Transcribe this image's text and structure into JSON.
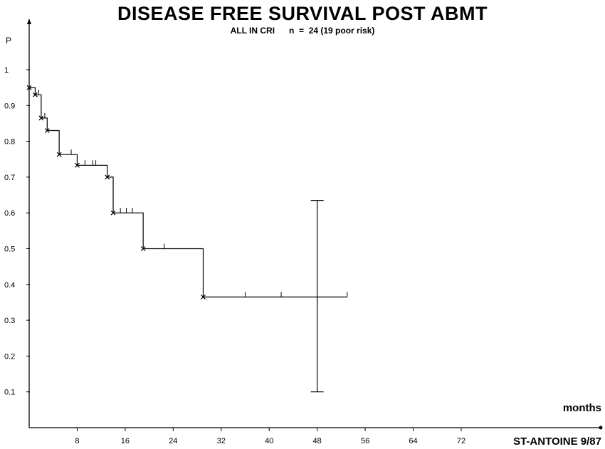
{
  "chart_data": {
    "type": "line",
    "title": "DISEASE FREE SURVIVAL POST ABMT",
    "subtitle": "ALL IN CRI      n  =  24 (19 poor risk)",
    "ylabel": "P",
    "xlabel": "months",
    "credit": "ST-ANTOINE 9/87",
    "xlim": [
      0,
      96
    ],
    "ylim": [
      0,
      1.05
    ],
    "x_ticks": [
      8,
      16,
      24,
      32,
      40,
      48,
      56,
      64,
      72
    ],
    "y_ticks": [
      0.1,
      0.2,
      0.3,
      0.4,
      0.5,
      0.6,
      0.7,
      0.8,
      0.9,
      1
    ],
    "y_tick_labels": [
      "0.1",
      "0.2",
      "0.3",
      "0.4",
      "0.5",
      "0.6",
      "0.7",
      "0.8",
      "0.9",
      "1"
    ],
    "grid": false,
    "series": [
      {
        "steps": [
          {
            "x": 0,
            "y": 0.95
          },
          {
            "x": 1,
            "y": 0.93
          },
          {
            "x": 2,
            "y": 0.865
          },
          {
            "x": 3,
            "y": 0.83
          },
          {
            "x": 5,
            "y": 0.763
          },
          {
            "x": 8,
            "y": 0.733
          },
          {
            "x": 13,
            "y": 0.7
          },
          {
            "x": 14,
            "y": 0.6
          },
          {
            "x": 19,
            "y": 0.5
          },
          {
            "x": 29,
            "y": 0.365
          }
        ],
        "end_x": 53,
        "events": [
          {
            "x": 0,
            "y": 0.95
          },
          {
            "x": 1,
            "y": 0.93
          },
          {
            "x": 2,
            "y": 0.865
          },
          {
            "x": 3,
            "y": 0.83
          },
          {
            "x": 5,
            "y": 0.763
          },
          {
            "x": 8,
            "y": 0.733
          },
          {
            "x": 13,
            "y": 0.7
          },
          {
            "x": 14,
            "y": 0.6
          },
          {
            "x": 19,
            "y": 0.5
          },
          {
            "x": 29,
            "y": 0.365
          }
        ],
        "censored": [
          {
            "x": 1.6,
            "y": 0.93
          },
          {
            "x": 2.6,
            "y": 0.865
          },
          {
            "x": 7,
            "y": 0.763
          },
          {
            "x": 9.3,
            "y": 0.733
          },
          {
            "x": 10.6,
            "y": 0.733
          },
          {
            "x": 11.1,
            "y": 0.733
          },
          {
            "x": 15.2,
            "y": 0.6
          },
          {
            "x": 16.2,
            "y": 0.6
          },
          {
            "x": 17.2,
            "y": 0.6
          },
          {
            "x": 22.5,
            "y": 0.5
          },
          {
            "x": 36,
            "y": 0.365
          },
          {
            "x": 42,
            "y": 0.365
          },
          {
            "x": 53,
            "y": 0.365
          }
        ]
      }
    ],
    "error_bar": {
      "x": 48,
      "low": 0.1,
      "high": 0.635
    }
  }
}
